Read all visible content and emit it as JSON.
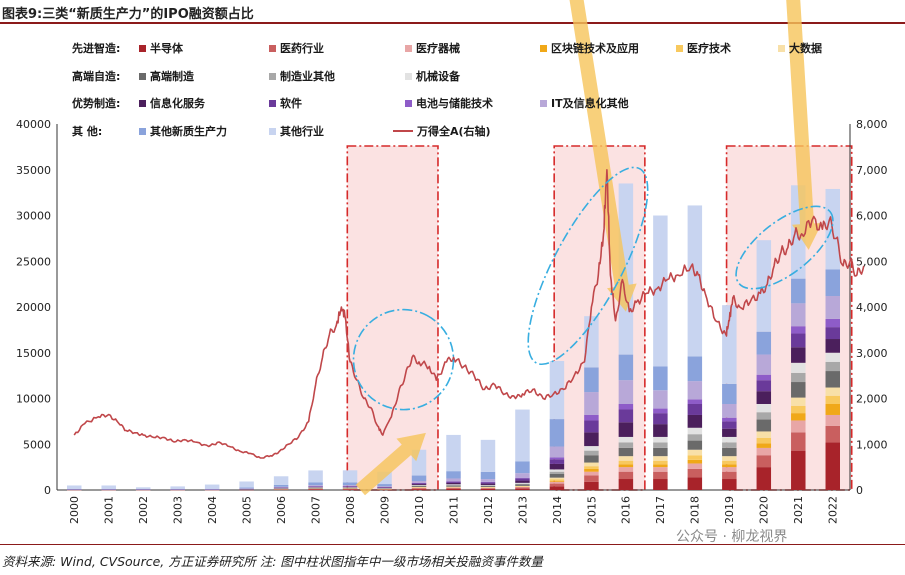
{
  "title": "图表9:三类“新质生产力”的IPO融资额占比",
  "source": "资料来源: Wind, CVSource, 方正证券研究所 注: 图中柱状图指年中一级市场相关投融资事件数量",
  "watermark": "公众号 · 柳龙视界",
  "chart_data": {
    "type": "bar",
    "stacked": true,
    "categories": [
      "2000",
      "2001",
      "2002",
      "2003",
      "2004",
      "2005",
      "2006",
      "2007",
      "2008",
      "2009",
      "2010",
      "2011",
      "2012",
      "2013",
      "2014",
      "2015",
      "2016",
      "2017",
      "2018",
      "2019",
      "2020",
      "2021",
      "2022"
    ],
    "ylim": [
      0,
      40000
    ],
    "y2lim": [
      0,
      8000
    ],
    "y_ticks": [
      0,
      5000,
      10000,
      15000,
      20000,
      25000,
      30000,
      35000,
      40000
    ],
    "y2_ticks": [
      "0",
      "1,000",
      "2,000",
      "3,000",
      "4,000",
      "5,000",
      "6,000",
      "7,000",
      "8,000"
    ],
    "legend_groups": [
      {
        "label": "先进智造:",
        "items": [
          0,
          1,
          2,
          3,
          4,
          5
        ]
      },
      {
        "label": "高端自造:",
        "items": [
          6,
          7,
          8
        ]
      },
      {
        "label": "优势制造:",
        "items": [
          9,
          10,
          11,
          12
        ]
      },
      {
        "label": "其      他:",
        "items": [
          13,
          14
        ]
      }
    ],
    "series": [
      {
        "name": "半导体",
        "color": "#a8232a",
        "values": [
          10,
          10,
          10,
          10,
          10,
          20,
          40,
          60,
          60,
          40,
          100,
          120,
          110,
          150,
          400,
          900,
          1200,
          1200,
          1400,
          1200,
          2500,
          4300,
          5200
        ]
      },
      {
        "name": "医药行业",
        "color": "#c95f5f",
        "values": [
          10,
          10,
          10,
          10,
          10,
          20,
          40,
          60,
          60,
          40,
          100,
          100,
          90,
          120,
          300,
          700,
          800,
          800,
          900,
          800,
          1300,
          2000,
          1800
        ]
      },
      {
        "name": "医疗器械",
        "color": "#e8a6a6",
        "values": [
          5,
          5,
          5,
          5,
          5,
          10,
          20,
          30,
          30,
          20,
          50,
          60,
          50,
          70,
          200,
          400,
          500,
          500,
          600,
          500,
          800,
          1300,
          1200
        ]
      },
      {
        "name": "区块链技术及应用",
        "color": "#f0a818",
        "values": [
          0,
          0,
          0,
          0,
          0,
          0,
          0,
          0,
          0,
          0,
          0,
          0,
          0,
          0,
          100,
          300,
          300,
          300,
          400,
          300,
          500,
          800,
          1200
        ]
      },
      {
        "name": "医疗技术",
        "color": "#f8c95e",
        "values": [
          0,
          0,
          0,
          0,
          0,
          0,
          0,
          0,
          10,
          10,
          30,
          30,
          30,
          40,
          150,
          300,
          400,
          400,
          500,
          400,
          600,
          800,
          900
        ]
      },
      {
        "name": "大数据",
        "color": "#f8e0a8",
        "values": [
          0,
          0,
          0,
          0,
          0,
          0,
          10,
          20,
          20,
          20,
          50,
          50,
          50,
          70,
          200,
          400,
          500,
          500,
          600,
          500,
          700,
          900,
          900
        ]
      },
      {
        "name": "高端制造",
        "color": "#6a6a6a",
        "values": [
          10,
          10,
          10,
          10,
          10,
          20,
          40,
          60,
          60,
          40,
          100,
          120,
          100,
          150,
          400,
          800,
          900,
          900,
          1000,
          900,
          1300,
          1700,
          1800
        ]
      },
      {
        "name": "制造业其他",
        "color": "#a8a8a8",
        "values": [
          5,
          5,
          5,
          5,
          5,
          10,
          20,
          30,
          30,
          20,
          60,
          70,
          60,
          90,
          250,
          500,
          600,
          600,
          700,
          600,
          800,
          1000,
          1000
        ]
      },
      {
        "name": "机械设备",
        "color": "#e2e2e2",
        "values": [
          5,
          5,
          5,
          5,
          5,
          10,
          20,
          30,
          30,
          20,
          60,
          70,
          60,
          90,
          250,
          500,
          600,
          600,
          700,
          600,
          900,
          1100,
          1000
        ]
      },
      {
        "name": "信息化服务",
        "color": "#4b1f5c",
        "values": [
          10,
          10,
          10,
          10,
          10,
          20,
          40,
          60,
          60,
          50,
          100,
          150,
          150,
          250,
          600,
          1500,
          1600,
          1400,
          1400,
          900,
          1400,
          1700,
          1500
        ]
      },
      {
        "name": "软件",
        "color": "#6a3a9a",
        "values": [
          10,
          10,
          10,
          10,
          10,
          20,
          40,
          60,
          60,
          50,
          100,
          150,
          150,
          250,
          500,
          1300,
          1400,
          1200,
          1200,
          800,
          1200,
          1500,
          1300
        ]
      },
      {
        "name": "电池与储能技术",
        "color": "#8e5cc8",
        "values": [
          0,
          0,
          0,
          0,
          0,
          0,
          0,
          10,
          10,
          10,
          30,
          40,
          40,
          60,
          200,
          600,
          600,
          500,
          500,
          400,
          600,
          800,
          900
        ]
      },
      {
        "name": "IT及信息化其他",
        "color": "#b8a8d8",
        "values": [
          20,
          20,
          20,
          20,
          20,
          40,
          80,
          100,
          100,
          80,
          200,
          300,
          300,
          500,
          1200,
          2500,
          2600,
          2000,
          2000,
          1500,
          2200,
          2500,
          2500
        ]
      },
      {
        "name": "其他新质生产力",
        "color": "#8aa3dc",
        "values": [
          50,
          50,
          50,
          50,
          50,
          100,
          200,
          300,
          300,
          250,
          600,
          800,
          800,
          1300,
          3000,
          2700,
          2800,
          2600,
          2700,
          2200,
          2500,
          2700,
          2900
        ]
      },
      {
        "name": "其他行业",
        "color": "#c8d4f0",
        "values": [
          360,
          360,
          160,
          260,
          460,
          660,
          950,
          1320,
          1320,
          1350,
          2820,
          3960,
          3490,
          5650,
          6350,
          5600,
          18700,
          16500,
          16500,
          8600,
          10000,
          10200,
          8800
        ]
      }
    ],
    "line": {
      "name": "万得全A(右轴)",
      "color": "#c0474a",
      "x": [
        2000.0,
        2000.3,
        2000.7,
        2001.0,
        2001.3,
        2001.5,
        2001.8,
        2002.0,
        2002.3,
        2002.6,
        2002.9,
        2003.2,
        2003.5,
        2003.9,
        2004.2,
        2004.5,
        2004.8,
        2005.1,
        2005.4,
        2005.7,
        2005.9,
        2006.2,
        2006.5,
        2006.8,
        2007.0,
        2007.2,
        2007.4,
        2007.6,
        2007.75,
        2007.85,
        2008.0,
        2008.2,
        2008.4,
        2008.6,
        2008.8,
        2008.95,
        2009.2,
        2009.4,
        2009.6,
        2009.8,
        2010.0,
        2010.3,
        2010.5,
        2010.8,
        2011.0,
        2011.3,
        2011.6,
        2011.9,
        2012.2,
        2012.5,
        2012.8,
        2013.0,
        2013.3,
        2013.6,
        2013.9,
        2014.2,
        2014.5,
        2014.8,
        2015.0,
        2015.2,
        2015.35,
        2015.45,
        2015.55,
        2015.7,
        2015.9,
        2016.1,
        2016.3,
        2016.6,
        2016.9,
        2017.2,
        2017.5,
        2017.9,
        2018.1,
        2018.3,
        2018.6,
        2018.9,
        2019.0,
        2019.1,
        2019.3,
        2019.6,
        2019.9,
        2020.1,
        2020.3,
        2020.5,
        2020.7,
        2020.9,
        2021.1,
        2021.4,
        2021.7,
        2021.9,
        2022.1,
        2022.3,
        2022.5,
        2022.7,
        2022.9
      ],
      "y": [
        1200,
        1450,
        1600,
        1650,
        1450,
        1300,
        1250,
        1200,
        1150,
        1150,
        1050,
        1100,
        1050,
        950,
        1050,
        950,
        850,
        800,
        700,
        750,
        800,
        1000,
        1150,
        1500,
        2300,
        2900,
        3400,
        3600,
        4000,
        3800,
        2800,
        2400,
        2000,
        1800,
        1400,
        1200,
        1600,
        2100,
        2500,
        2900,
        2800,
        2700,
        2400,
        2800,
        2900,
        2700,
        2500,
        2200,
        2300,
        2100,
        2000,
        2100,
        2200,
        2000,
        2100,
        2200,
        2500,
        2800,
        4000,
        4700,
        5600,
        7000,
        4700,
        3700,
        4600,
        3900,
        4100,
        4300,
        4400,
        4600,
        4700,
        4900,
        4700,
        4300,
        3700,
        3400,
        3700,
        4200,
        4000,
        4100,
        4300,
        4500,
        4900,
        5200,
        5300,
        5600,
        5600,
        5900,
        5700,
        5900,
        5500,
        4900,
        5000,
        4700,
        4900
      ]
    },
    "highlight_periods": [
      [
        2008,
        2010
      ],
      [
        2014,
        2016
      ],
      [
        2019,
        2022
      ]
    ]
  }
}
